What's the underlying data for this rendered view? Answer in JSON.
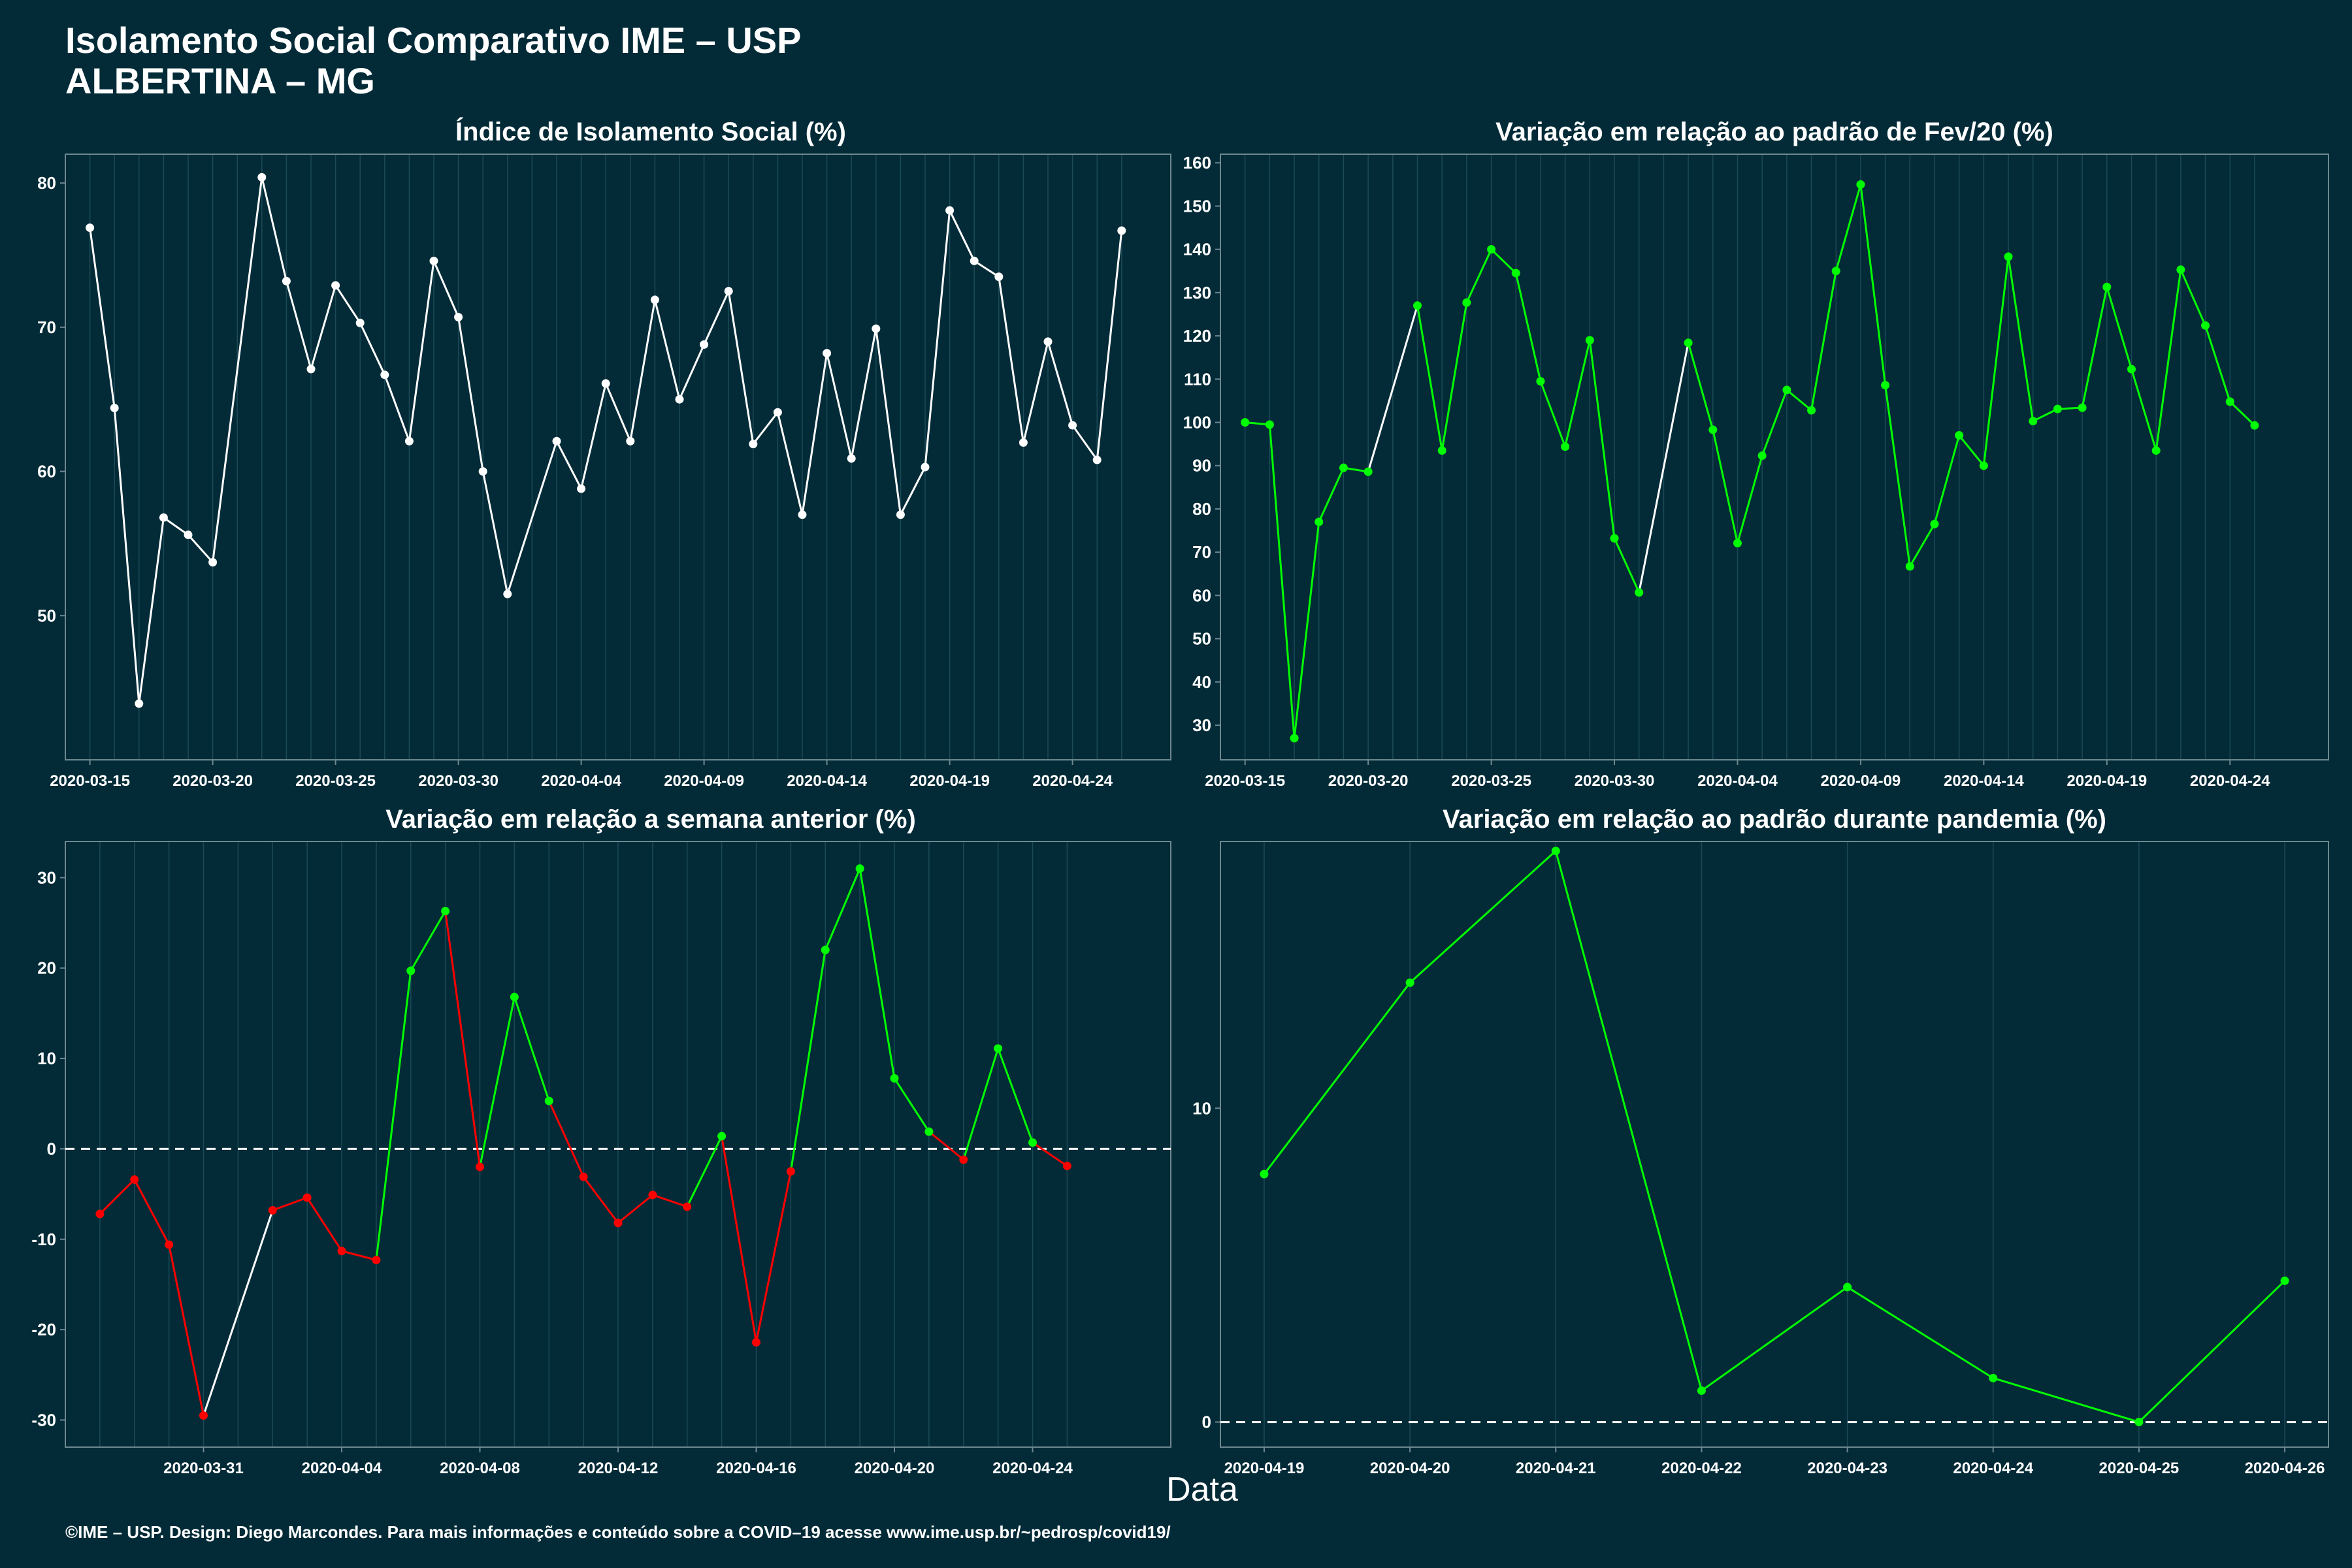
{
  "header": {
    "title_line1": "Isolamento Social Comparativo IME – USP",
    "title_line2": "ALBERTINA – MG"
  },
  "xlabel": "Data",
  "footer": "©IME – USP. Design: Diego Marcondes. Para mais informações e conteúdo sobre a COVID–19 acesse www.ime.usp.br/~pedrosp/covid19/",
  "colors": {
    "background": "#022B37",
    "neutral": "#FFFFFF",
    "positive": "#00FF00",
    "negative": "#FF0000",
    "grid": "#1B4A56"
  },
  "chart_data": [
    {
      "id": "isolamento",
      "type": "line",
      "title": "Índice de Isolamento Social (%)",
      "x_start": "2020-03-15",
      "xlim": [
        "2020-03-14",
        "2020-04-28"
      ],
      "x_ticks": [
        "2020-03-15",
        "2020-03-20",
        "2020-03-25",
        "2020-03-30",
        "2020-04-04",
        "2020-04-09",
        "2020-04-14",
        "2020-04-19",
        "2020-04-24"
      ],
      "ylim": [
        40,
        82
      ],
      "y_ticks": [
        50,
        60,
        70,
        80
      ],
      "color_mode": "single",
      "values": [
        76.9,
        64.4,
        43.9,
        56.8,
        55.6,
        53.7,
        null,
        80.4,
        73.2,
        67.1,
        72.9,
        70.3,
        66.7,
        62.1,
        74.6,
        70.7,
        60.0,
        51.5,
        null,
        62.1,
        58.8,
        66.1,
        62.1,
        71.9,
        65.0,
        68.8,
        72.5,
        61.9,
        64.1,
        57.0,
        68.2,
        60.9,
        69.9,
        57.0,
        60.3,
        78.1,
        74.6,
        73.5,
        62.0,
        69.0,
        63.2,
        60.8,
        76.7
      ]
    },
    {
      "id": "fev",
      "type": "line",
      "title": "Variação em relação ao padrão de Fev/20 (%)",
      "x_start": "2020-03-15",
      "xlim": [
        "2020-03-14",
        "2020-04-28"
      ],
      "x_ticks": [
        "2020-03-15",
        "2020-03-20",
        "2020-03-25",
        "2020-03-30",
        "2020-04-04",
        "2020-04-09",
        "2020-04-14",
        "2020-04-19",
        "2020-04-24"
      ],
      "ylim": [
        22,
        162
      ],
      "y_ticks": [
        30,
        40,
        50,
        60,
        70,
        80,
        90,
        100,
        110,
        120,
        130,
        140,
        150,
        160
      ],
      "color_mode": "threshold",
      "threshold": 0,
      "values": [
        100.0,
        99.5,
        27.0,
        77.0,
        89.5,
        88.6,
        null,
        127.0,
        93.5,
        127.7,
        140.0,
        134.5,
        109.5,
        94.4,
        119.0,
        73.2,
        60.7,
        null,
        118.4,
        98.3,
        72.1,
        92.3,
        107.5,
        102.8,
        135.0,
        155.0,
        108.6,
        66.7,
        76.5,
        97.0,
        90.0,
        138.3,
        100.3,
        103.1,
        103.4,
        131.3,
        112.3,
        93.5,
        135.3,
        122.4,
        104.8,
        99.3
      ]
    },
    {
      "id": "semana",
      "type": "line",
      "title": "Variação em relação a semana anterior (%)",
      "x_start": "2020-03-28",
      "xlim": [
        "2020-03-27",
        "2020-04-28"
      ],
      "x_ticks": [
        "2020-03-31",
        "2020-04-04",
        "2020-04-08",
        "2020-04-12",
        "2020-04-16",
        "2020-04-20",
        "2020-04-24"
      ],
      "ylim": [
        -33,
        34
      ],
      "y_ticks": [
        -30,
        -20,
        -10,
        0,
        10,
        20,
        30
      ],
      "reference_line": 0,
      "color_mode": "threshold",
      "threshold": 0,
      "values": [
        -7.2,
        -3.4,
        -10.6,
        -29.5,
        null,
        -6.8,
        -5.4,
        -11.3,
        -12.3,
        19.7,
        26.3,
        -2.0,
        16.8,
        5.3,
        -3.1,
        -8.2,
        -5.1,
        -6.4,
        1.4,
        -21.4,
        -2.5,
        22.0,
        31.0,
        7.8,
        1.9,
        -1.2,
        11.1,
        0.7,
        -1.9
      ]
    },
    {
      "id": "pandemia",
      "type": "line",
      "title": "Variação em relação ao padrão durante pandemia (%)",
      "categories": [
        "2020-04-19",
        "2020-04-20",
        "2020-04-21",
        "2020-04-22",
        "2020-04-23",
        "2020-04-24",
        "2020-04-25",
        "2020-04-26"
      ],
      "ylim": [
        -0.8,
        18.5
      ],
      "y_ticks": [
        0,
        10
      ],
      "reference_line": 0,
      "color_mode": "threshold",
      "threshold": 0,
      "values": [
        7.9,
        14.0,
        18.2,
        1.0,
        4.3,
        1.4,
        0.0,
        4.5
      ]
    }
  ]
}
